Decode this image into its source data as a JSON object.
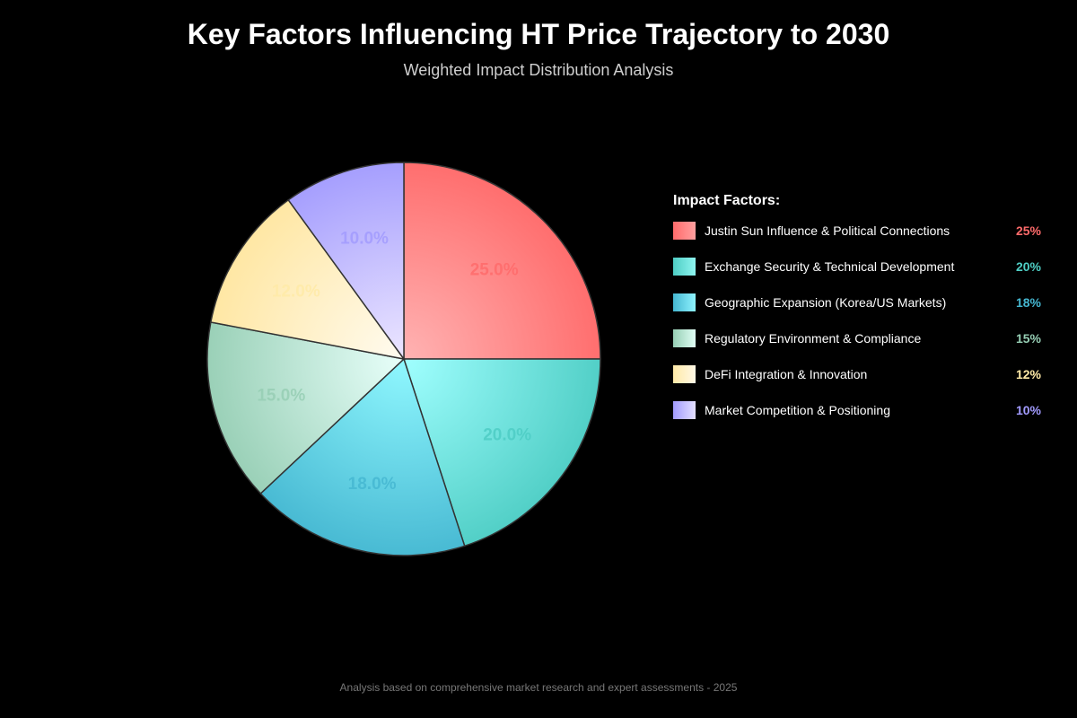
{
  "header": {
    "title": "Key Factors Influencing HT Price Trajectory to 2030",
    "subtitle": "Weighted Impact Distribution Analysis"
  },
  "legend": {
    "title": "Impact Factors:",
    "items": [
      {
        "label": "Justin Sun Influence & Political Connections",
        "value": "25%",
        "color": "#ff6b6b"
      },
      {
        "label": "Exchange Security & Technical Development",
        "value": "20%",
        "color": "#4ecdc4"
      },
      {
        "label": "Geographic Expansion (Korea/US Markets)",
        "value": "18%",
        "color": "#45b7d1"
      },
      {
        "label": "Regulatory Environment & Compliance",
        "value": "15%",
        "color": "#96ceb4"
      },
      {
        "label": "DeFi Integration & Innovation",
        "value": "12%",
        "color": "#ffeaa7"
      },
      {
        "label": "Market Competition & Positioning",
        "value": "10%",
        "color": "#a29bfe"
      }
    ]
  },
  "slice_labels": [
    "25.0%",
    "20.0%",
    "18.0%",
    "15.0%",
    "12.0%",
    "10.0%"
  ],
  "footer": "Analysis based on comprehensive market research and expert assessments - 2025",
  "chart_data": {
    "type": "pie",
    "title": "Key Factors Influencing HT Price Trajectory to 2030",
    "subtitle": "Weighted Impact Distribution Analysis",
    "categories": [
      "Justin Sun Influence & Political Connections",
      "Exchange Security & Technical Development",
      "Geographic Expansion (Korea/US Markets)",
      "Regulatory Environment & Compliance",
      "DeFi Integration & Innovation",
      "Market Competition & Positioning"
    ],
    "values": [
      25,
      20,
      18,
      15,
      12,
      10
    ],
    "colors": [
      "#ff6b6b",
      "#4ecdc4",
      "#45b7d1",
      "#96ceb4",
      "#ffeaa7",
      "#a29bfe"
    ],
    "start_angle": "12 o'clock, clockwise",
    "legend_position": "right",
    "legend_title": "Impact Factors:"
  }
}
